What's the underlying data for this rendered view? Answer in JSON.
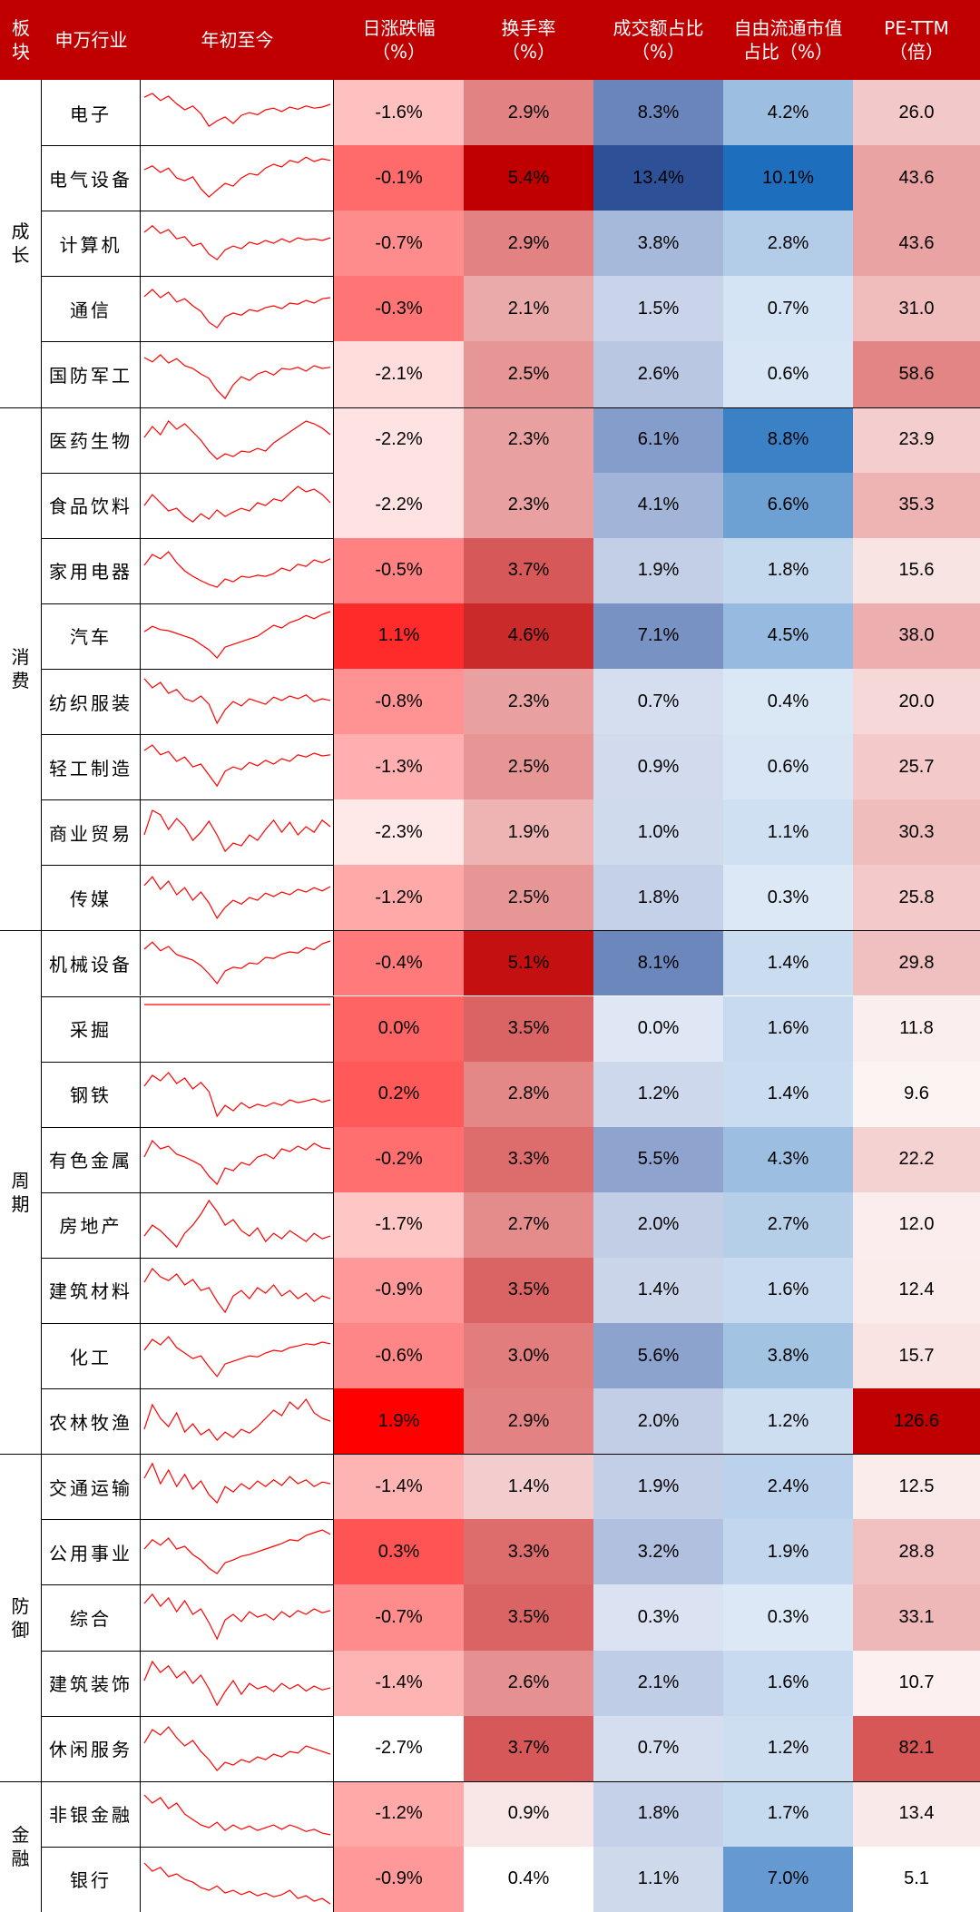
{
  "chart_data": {
    "type": "table",
    "headers": [
      {
        "key": "sector",
        "lines": [
          "板",
          "块"
        ]
      },
      {
        "key": "industry",
        "lines": [
          "申万行业"
        ]
      },
      {
        "key": "ytd",
        "lines": [
          "年初至今"
        ]
      },
      {
        "key": "daily",
        "lines": [
          "日涨跌幅",
          "（%）"
        ]
      },
      {
        "key": "turnover",
        "lines": [
          "换手率",
          "（%）"
        ]
      },
      {
        "key": "volume_share",
        "lines": [
          "成交额占比",
          "（%）"
        ]
      },
      {
        "key": "float_share",
        "lines": [
          "自由流通市值",
          "占比（%）"
        ]
      },
      {
        "key": "pe",
        "lines": [
          "PE-TTM",
          "（倍）"
        ]
      }
    ],
    "sectors": [
      {
        "name": "成长",
        "rows": [
          0,
          4
        ]
      },
      {
        "name": "消费",
        "rows": [
          5,
          12
        ]
      },
      {
        "name": "周期",
        "rows": [
          13,
          20
        ]
      },
      {
        "name": "防御",
        "rows": [
          21,
          25
        ]
      },
      {
        "name": "金融",
        "rows": [
          26,
          27
        ]
      }
    ],
    "rows": [
      {
        "industry": "电子",
        "daily": "-1.6%",
        "turnover": "2.9%",
        "volume_share": "8.3%",
        "float_share": "4.2%",
        "pe": "26.0",
        "spark": [
          0.78,
          0.85,
          0.72,
          0.8,
          0.66,
          0.55,
          0.62,
          0.48,
          0.25,
          0.35,
          0.42,
          0.3,
          0.45,
          0.5,
          0.46,
          0.55,
          0.58,
          0.52,
          0.6,
          0.56,
          0.62,
          0.58,
          0.6,
          0.65
        ]
      },
      {
        "industry": "电气设备",
        "daily": "-0.1%",
        "turnover": "5.4%",
        "volume_share": "13.4%",
        "float_share": "10.1%",
        "pe": "43.6",
        "spark": [
          0.65,
          0.72,
          0.6,
          0.68,
          0.5,
          0.45,
          0.52,
          0.3,
          0.15,
          0.28,
          0.4,
          0.35,
          0.5,
          0.58,
          0.55,
          0.68,
          0.75,
          0.7,
          0.82,
          0.78,
          0.88,
          0.8,
          0.85,
          0.82
        ]
      },
      {
        "industry": "计算机",
        "daily": "-0.7%",
        "turnover": "2.9%",
        "volume_share": "3.8%",
        "float_share": "2.8%",
        "pe": "43.6",
        "spark": [
          0.7,
          0.82,
          0.68,
          0.75,
          0.58,
          0.62,
          0.45,
          0.5,
          0.3,
          0.2,
          0.38,
          0.45,
          0.4,
          0.52,
          0.48,
          0.55,
          0.5,
          0.58,
          0.52,
          0.6,
          0.56,
          0.58,
          0.55,
          0.6
        ]
      },
      {
        "industry": "通信",
        "daily": "-0.3%",
        "turnover": "2.1%",
        "volume_share": "1.5%",
        "float_share": "0.7%",
        "pe": "31.0",
        "spark": [
          0.72,
          0.85,
          0.7,
          0.8,
          0.62,
          0.68,
          0.55,
          0.45,
          0.25,
          0.15,
          0.35,
          0.42,
          0.38,
          0.48,
          0.45,
          0.52,
          0.55,
          0.5,
          0.6,
          0.58,
          0.65,
          0.6,
          0.68,
          0.7
        ]
      },
      {
        "industry": "国防军工",
        "daily": "-2.1%",
        "turnover": "2.5%",
        "volume_share": "2.6%",
        "float_share": "0.6%",
        "pe": "58.6",
        "spark": [
          0.8,
          0.72,
          0.85,
          0.7,
          0.78,
          0.65,
          0.6,
          0.5,
          0.42,
          0.2,
          0.05,
          0.3,
          0.45,
          0.38,
          0.5,
          0.55,
          0.48,
          0.6,
          0.58,
          0.62,
          0.55,
          0.65,
          0.6,
          0.62
        ]
      },
      {
        "industry": "医药生物",
        "daily": "-2.2%",
        "turnover": "2.3%",
        "volume_share": "6.1%",
        "float_share": "8.8%",
        "pe": "23.9",
        "spark": [
          0.55,
          0.75,
          0.6,
          0.85,
          0.7,
          0.8,
          0.65,
          0.5,
          0.3,
          0.15,
          0.25,
          0.2,
          0.3,
          0.28,
          0.35,
          0.3,
          0.45,
          0.55,
          0.65,
          0.75,
          0.85,
          0.8,
          0.72,
          0.6
        ]
      },
      {
        "industry": "食品饮料",
        "daily": "-2.2%",
        "turnover": "2.3%",
        "volume_share": "4.1%",
        "float_share": "6.6%",
        "pe": "35.3",
        "spark": [
          0.5,
          0.7,
          0.55,
          0.4,
          0.45,
          0.3,
          0.2,
          0.35,
          0.25,
          0.42,
          0.3,
          0.38,
          0.45,
          0.4,
          0.55,
          0.5,
          0.62,
          0.58,
          0.72,
          0.85,
          0.75,
          0.8,
          0.7,
          0.55
        ]
      },
      {
        "industry": "家用电器",
        "daily": "-0.5%",
        "turnover": "3.7%",
        "volume_share": "1.9%",
        "float_share": "1.8%",
        "pe": "15.6",
        "spark": [
          0.6,
          0.8,
          0.72,
          0.85,
          0.65,
          0.5,
          0.4,
          0.32,
          0.25,
          0.2,
          0.35,
          0.3,
          0.4,
          0.38,
          0.42,
          0.4,
          0.45,
          0.55,
          0.5,
          0.62,
          0.58,
          0.7,
          0.65,
          0.72
        ]
      },
      {
        "industry": "汽车",
        "daily": "1.1%",
        "turnover": "4.6%",
        "volume_share": "7.1%",
        "float_share": "4.5%",
        "pe": "38.0",
        "spark": [
          0.58,
          0.68,
          0.62,
          0.6,
          0.55,
          0.5,
          0.45,
          0.35,
          0.25,
          0.1,
          0.3,
          0.35,
          0.4,
          0.45,
          0.5,
          0.6,
          0.7,
          0.65,
          0.75,
          0.8,
          0.88,
          0.82,
          0.9,
          0.95
        ]
      },
      {
        "industry": "纺织服装",
        "daily": "-0.8%",
        "turnover": "2.3%",
        "volume_share": "0.7%",
        "float_share": "0.4%",
        "pe": "20.0",
        "spark": [
          0.92,
          0.75,
          0.85,
          0.65,
          0.72,
          0.55,
          0.5,
          0.6,
          0.45,
          0.1,
          0.35,
          0.5,
          0.42,
          0.55,
          0.5,
          0.45,
          0.58,
          0.52,
          0.6,
          0.55,
          0.62,
          0.5,
          0.55,
          0.52
        ]
      },
      {
        "industry": "轻工制造",
        "daily": "-1.3%",
        "turnover": "2.5%",
        "volume_share": "0.9%",
        "float_share": "0.6%",
        "pe": "25.7",
        "spark": [
          0.8,
          0.9,
          0.72,
          0.78,
          0.6,
          0.68,
          0.5,
          0.55,
          0.35,
          0.15,
          0.42,
          0.5,
          0.45,
          0.58,
          0.52,
          0.62,
          0.55,
          0.65,
          0.6,
          0.72,
          0.68,
          0.75,
          0.7,
          0.72
        ]
      },
      {
        "industry": "商业贸易",
        "daily": "-2.3%",
        "turnover": "1.9%",
        "volume_share": "1.0%",
        "float_share": "1.1%",
        "pe": "30.3",
        "spark": [
          0.45,
          0.9,
          0.82,
          0.55,
          0.75,
          0.6,
          0.35,
          0.5,
          0.7,
          0.45,
          0.15,
          0.3,
          0.25,
          0.45,
          0.35,
          0.55,
          0.72,
          0.5,
          0.68,
          0.45,
          0.6,
          0.5,
          0.72,
          0.6
        ]
      },
      {
        "industry": "传媒",
        "daily": "-1.2%",
        "turnover": "2.5%",
        "volume_share": "1.8%",
        "float_share": "0.3%",
        "pe": "25.8",
        "spark": [
          0.72,
          0.88,
          0.65,
          0.8,
          0.55,
          0.68,
          0.45,
          0.6,
          0.4,
          0.12,
          0.32,
          0.45,
          0.38,
          0.5,
          0.45,
          0.58,
          0.52,
          0.6,
          0.55,
          0.65,
          0.6,
          0.68,
          0.62,
          0.7
        ]
      },
      {
        "industry": "机械设备",
        "daily": "-0.4%",
        "turnover": "5.1%",
        "volume_share": "8.1%",
        "float_share": "1.4%",
        "pe": "29.8",
        "spark": [
          0.75,
          0.88,
          0.72,
          0.8,
          0.65,
          0.6,
          0.55,
          0.45,
          0.3,
          0.12,
          0.35,
          0.42,
          0.4,
          0.5,
          0.48,
          0.6,
          0.58,
          0.66,
          0.7,
          0.68,
          0.78,
          0.74,
          0.85,
          0.9
        ]
      },
      {
        "industry": "采掘",
        "daily": "0.0%",
        "turnover": "3.5%",
        "volume_share": "0.0%",
        "float_share": "1.6%",
        "pe": "11.8",
        "spark": [
          0.95,
          0.95,
          0.95,
          0.95,
          0.95,
          0.95,
          0.95,
          0.95,
          0.95,
          0.95,
          0.95,
          0.95,
          0.95,
          0.95,
          0.95,
          0.95,
          0.95,
          0.95,
          0.95,
          0.95,
          0.95,
          0.95,
          0.95,
          0.95
        ]
      },
      {
        "industry": "钢铁",
        "daily": "0.2%",
        "turnover": "2.8%",
        "volume_share": "1.2%",
        "float_share": "1.4%",
        "pe": "9.6",
        "spark": [
          0.65,
          0.85,
          0.75,
          0.9,
          0.7,
          0.8,
          0.6,
          0.72,
          0.55,
          0.1,
          0.3,
          0.2,
          0.35,
          0.25,
          0.32,
          0.28,
          0.35,
          0.3,
          0.4,
          0.35,
          0.38,
          0.42,
          0.36,
          0.4
        ]
      },
      {
        "industry": "有色金属",
        "daily": "-0.2%",
        "turnover": "3.3%",
        "volume_share": "5.5%",
        "float_share": "4.3%",
        "pe": "22.2",
        "spark": [
          0.55,
          0.85,
          0.7,
          0.75,
          0.6,
          0.55,
          0.48,
          0.4,
          0.2,
          0.05,
          0.35,
          0.3,
          0.45,
          0.4,
          0.55,
          0.6,
          0.52,
          0.7,
          0.65,
          0.75,
          0.68,
          0.8,
          0.72,
          0.7
        ]
      },
      {
        "industry": "房地产",
        "daily": "-1.7%",
        "turnover": "2.7%",
        "volume_share": "2.0%",
        "float_share": "2.7%",
        "pe": "12.0",
        "spark": [
          0.3,
          0.5,
          0.4,
          0.25,
          0.1,
          0.35,
          0.5,
          0.7,
          0.95,
          0.75,
          0.5,
          0.6,
          0.4,
          0.3,
          0.45,
          0.2,
          0.35,
          0.25,
          0.4,
          0.3,
          0.2,
          0.35,
          0.25,
          0.3
        ]
      },
      {
        "industry": "建筑材料",
        "daily": "-0.9%",
        "turnover": "3.5%",
        "volume_share": "1.4%",
        "float_share": "1.6%",
        "pe": "12.4",
        "spark": [
          0.65,
          0.9,
          0.75,
          0.68,
          0.8,
          0.6,
          0.7,
          0.5,
          0.55,
          0.3,
          0.1,
          0.4,
          0.5,
          0.35,
          0.55,
          0.45,
          0.6,
          0.4,
          0.5,
          0.35,
          0.45,
          0.3,
          0.4,
          0.35
        ]
      },
      {
        "industry": "化工",
        "daily": "-0.6%",
        "turnover": "3.0%",
        "volume_share": "5.6%",
        "float_share": "3.8%",
        "pe": "15.7",
        "spark": [
          0.6,
          0.8,
          0.7,
          0.85,
          0.65,
          0.55,
          0.45,
          0.5,
          0.3,
          0.12,
          0.35,
          0.4,
          0.45,
          0.5,
          0.48,
          0.55,
          0.6,
          0.58,
          0.65,
          0.68,
          0.72,
          0.7,
          0.75,
          0.72
        ]
      },
      {
        "industry": "农林牧渔",
        "daily": "1.9%",
        "turnover": "2.9%",
        "volume_share": "2.0%",
        "float_share": "1.2%",
        "pe": "126.6",
        "spark": [
          0.35,
          0.8,
          0.55,
          0.4,
          0.65,
          0.3,
          0.45,
          0.25,
          0.35,
          0.15,
          0.3,
          0.2,
          0.35,
          0.28,
          0.4,
          0.55,
          0.7,
          0.6,
          0.85,
          0.72,
          0.9,
          0.65,
          0.55,
          0.5
        ]
      },
      {
        "industry": "交通运输",
        "daily": "-1.4%",
        "turnover": "1.4%",
        "volume_share": "1.9%",
        "float_share": "2.4%",
        "pe": "12.5",
        "spark": [
          0.65,
          0.92,
          0.55,
          0.8,
          0.5,
          0.72,
          0.45,
          0.6,
          0.35,
          0.2,
          0.5,
          0.4,
          0.55,
          0.45,
          0.6,
          0.5,
          0.62,
          0.52,
          0.68,
          0.55,
          0.62,
          0.5,
          0.58,
          0.55
        ]
      },
      {
        "industry": "公用事业",
        "daily": "0.3%",
        "turnover": "3.3%",
        "volume_share": "3.2%",
        "float_share": "1.9%",
        "pe": "28.8",
        "spark": [
          0.55,
          0.72,
          0.62,
          0.75,
          0.55,
          0.6,
          0.45,
          0.35,
          0.2,
          0.1,
          0.3,
          0.35,
          0.42,
          0.45,
          0.5,
          0.55,
          0.6,
          0.65,
          0.72,
          0.7,
          0.8,
          0.85,
          0.9,
          0.82
        ]
      },
      {
        "industry": "综合",
        "daily": "-0.7%",
        "turnover": "3.5%",
        "volume_share": "0.3%",
        "float_share": "0.3%",
        "pe": "33.1",
        "spark": [
          0.75,
          0.92,
          0.7,
          0.85,
          0.6,
          0.8,
          0.55,
          0.65,
          0.4,
          0.1,
          0.45,
          0.55,
          0.42,
          0.6,
          0.5,
          0.55,
          0.45,
          0.6,
          0.5,
          0.62,
          0.55,
          0.65,
          0.58,
          0.62
        ]
      },
      {
        "industry": "建筑装饰",
        "daily": "-1.4%",
        "turnover": "2.6%",
        "volume_share": "2.1%",
        "float_share": "1.6%",
        "pe": "10.7",
        "spark": [
          0.55,
          0.9,
          0.7,
          0.82,
          0.6,
          0.72,
          0.5,
          0.65,
          0.4,
          0.1,
          0.35,
          0.55,
          0.3,
          0.5,
          0.4,
          0.45,
          0.35,
          0.5,
          0.4,
          0.48,
          0.36,
          0.45,
          0.38,
          0.42
        ]
      },
      {
        "industry": "休闲服务",
        "daily": "-2.7%",
        "turnover": "3.7%",
        "volume_share": "0.7%",
        "float_share": "1.2%",
        "pe": "82.1",
        "spark": [
          0.6,
          0.85,
          0.75,
          0.9,
          0.7,
          0.55,
          0.65,
          0.45,
          0.3,
          0.1,
          0.25,
          0.2,
          0.3,
          0.25,
          0.35,
          0.3,
          0.4,
          0.35,
          0.45,
          0.42,
          0.55,
          0.5,
          0.45,
          0.4
        ]
      },
      {
        "industry": "非银金融",
        "daily": "-1.2%",
        "turnover": "0.9%",
        "volume_share": "1.8%",
        "float_share": "1.7%",
        "pe": "13.4",
        "spark": [
          0.85,
          0.7,
          0.8,
          0.6,
          0.7,
          0.5,
          0.4,
          0.3,
          0.25,
          0.35,
          0.2,
          0.3,
          0.22,
          0.28,
          0.2,
          0.25,
          0.3,
          0.22,
          0.3,
          0.25,
          0.18,
          0.22,
          0.15,
          0.12
        ]
      },
      {
        "industry": "银行",
        "daily": "-0.9%",
        "turnover": "0.4%",
        "volume_share": "1.1%",
        "float_share": "7.0%",
        "pe": "5.1",
        "spark": [
          0.8,
          0.65,
          0.72,
          0.55,
          0.6,
          0.5,
          0.45,
          0.35,
          0.3,
          0.38,
          0.25,
          0.3,
          0.22,
          0.28,
          0.2,
          0.25,
          0.18,
          0.22,
          0.3,
          0.15,
          0.2,
          0.1,
          0.15,
          0.05
        ]
      }
    ],
    "colors": {
      "header_bg": "#c00000",
      "sparkline": "#ff0000",
      "grid": "#000000"
    }
  }
}
